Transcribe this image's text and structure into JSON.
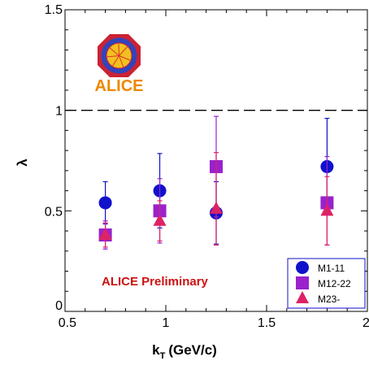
{
  "chart_data": {
    "type": "scatter",
    "title": "",
    "xlabel": "k",
    "xlabel_subscript": "T",
    "xlabel_unit": "(GeV/c)",
    "ylabel": "λ",
    "xlim": [
      0.5,
      2
    ],
    "ylim": [
      0,
      1.5
    ],
    "x_ticks": [
      "0.5",
      "1",
      "1.5",
      "2"
    ],
    "y_ticks": [
      "0",
      "0.5",
      "1",
      "1.5"
    ],
    "reference_line": {
      "y": 1,
      "style": "dashed"
    },
    "annotation": "ALICE Preliminary",
    "logo_text": "ALICE",
    "legend_position": "bottom-right",
    "series": [
      {
        "name": "M1-11",
        "marker": "circle",
        "color": "#1111cc",
        "points": [
          {
            "x": 0.7,
            "y": 0.54,
            "err_hi": 0.105,
            "err_lo": 0.105
          },
          {
            "x": 0.97,
            "y": 0.6,
            "err_hi": 0.185,
            "err_lo": 0.185
          },
          {
            "x": 1.25,
            "y": 0.49,
            "err_hi": 0.155,
            "err_lo": 0.155
          },
          {
            "x": 1.8,
            "y": 0.72,
            "err_hi": 0.24,
            "err_lo": 0.24
          }
        ]
      },
      {
        "name": "M12-22",
        "marker": "square",
        "color": "#9922cc",
        "points": [
          {
            "x": 0.7,
            "y": 0.38,
            "err_hi": 0.07,
            "err_lo": 0.07
          },
          {
            "x": 0.97,
            "y": 0.5,
            "err_hi": 0.16,
            "err_lo": 0.16
          },
          {
            "x": 1.25,
            "y": 0.72,
            "err_hi": 0.25,
            "err_lo": 0.25
          },
          {
            "x": 1.8,
            "y": 0.54,
            "err_hi": 0.23,
            "err_lo": 0.21
          }
        ]
      },
      {
        "name": "M23-",
        "marker": "triangle",
        "color": "#dd2266",
        "points": [
          {
            "x": 0.7,
            "y": 0.38,
            "err_hi": 0.06,
            "err_lo": 0.06
          },
          {
            "x": 0.97,
            "y": 0.45,
            "err_hi": 0.1,
            "err_lo": 0.1
          },
          {
            "x": 1.25,
            "y": 0.51,
            "err_hi": 0.28,
            "err_lo": 0.18
          },
          {
            "x": 1.8,
            "y": 0.5,
            "err_hi": 0.17,
            "err_lo": 0.17
          }
        ]
      }
    ]
  },
  "colors": {
    "annotation": "#cc1111",
    "logo_text": "#ee8800",
    "logo_ring": "#3344bb",
    "logo_octagon": "#cc2233",
    "legend_border": "#1111cc"
  }
}
